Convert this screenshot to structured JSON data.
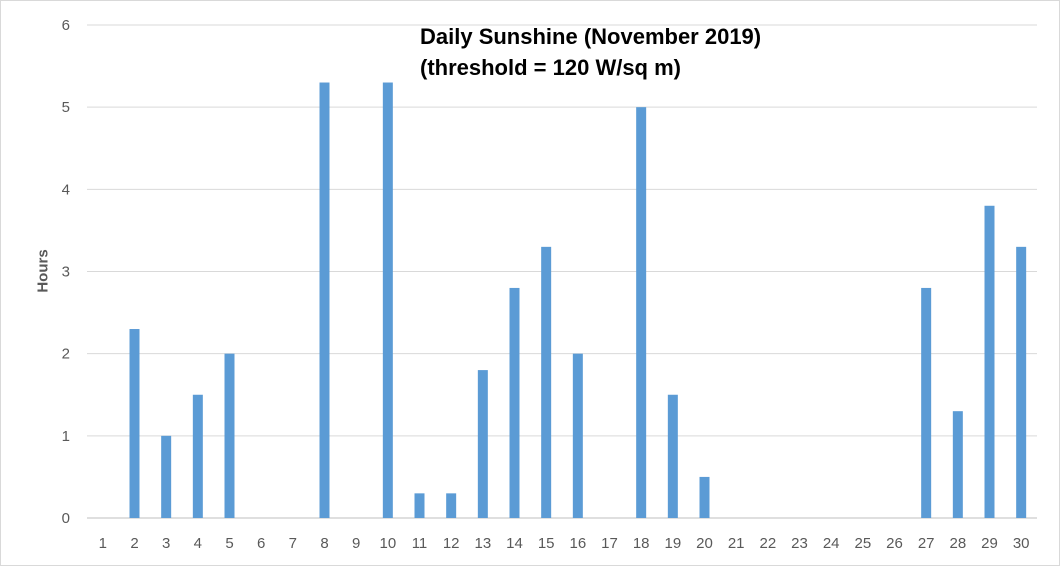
{
  "chart_data": {
    "type": "bar",
    "title_lines": [
      "Daily Sunshine (November 2019)",
      "(threshold = 120 W/sq m)"
    ],
    "xlabel": "",
    "ylabel": "Hours",
    "categories": [
      "1",
      "2",
      "3",
      "4",
      "5",
      "6",
      "7",
      "8",
      "9",
      "10",
      "11",
      "12",
      "13",
      "14",
      "15",
      "16",
      "17",
      "18",
      "19",
      "20",
      "21",
      "22",
      "23",
      "24",
      "25",
      "26",
      "27",
      "28",
      "29",
      "30"
    ],
    "values": [
      0,
      2.3,
      1.0,
      1.5,
      2.0,
      0,
      0,
      5.3,
      0,
      5.3,
      0.3,
      0.3,
      1.8,
      2.8,
      3.3,
      2.0,
      0,
      5.0,
      1.5,
      0.5,
      0,
      0,
      0,
      0,
      0,
      0,
      2.8,
      1.3,
      3.8,
      3.3
    ],
    "ylim": [
      0,
      6
    ],
    "yticks": [
      "0",
      "1",
      "2",
      "3",
      "4",
      "5",
      "6"
    ],
    "grid": true,
    "legend": "none",
    "bar_color": "#5b9bd5",
    "grid_color": "#d9d9d9"
  }
}
